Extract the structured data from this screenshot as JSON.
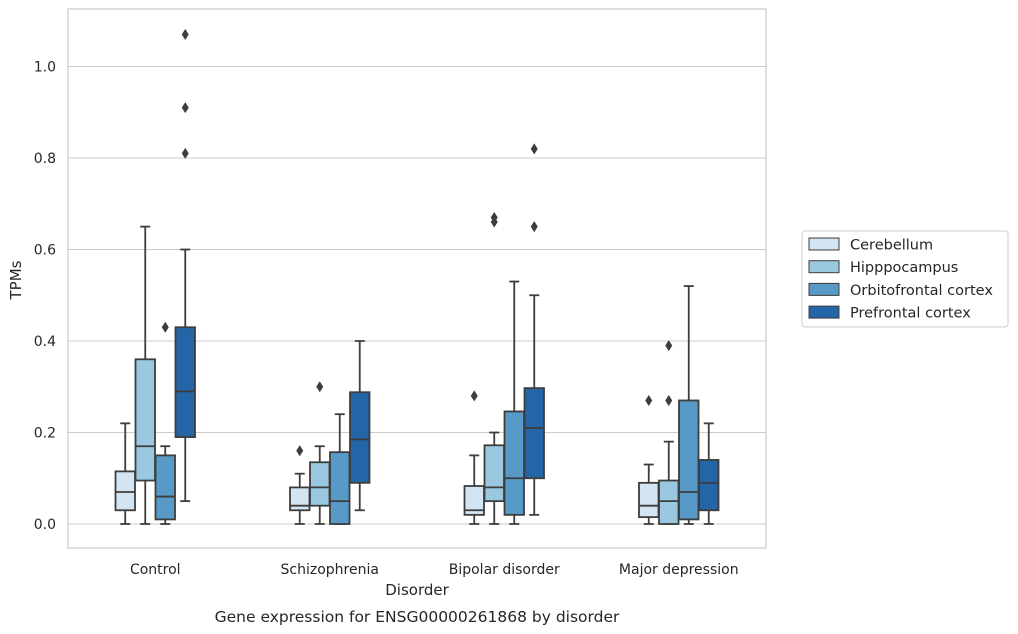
{
  "caption": "Gene expression for ENSG00000261868 by disorder",
  "chart_data": {
    "type": "box",
    "xlabel": "Disorder",
    "ylabel": "TPMs",
    "ylim": [
      -0.05,
      1.13
    ],
    "yticks": [
      "0.0",
      "0.2",
      "0.4",
      "0.6",
      "0.8",
      "1.0"
    ],
    "grid": "horizontal",
    "legend_position": "right",
    "categories": [
      "Control",
      "Schizophrenia",
      "Bipolar disorder",
      "Major depression"
    ],
    "series": [
      {
        "name": "Cerebellum",
        "color": "#d3e4f3",
        "boxes": [
          {
            "min": 0.0,
            "q1": 0.03,
            "median": 0.07,
            "q3": 0.115,
            "max": 0.22,
            "outliers": []
          },
          {
            "min": 0.0,
            "q1": 0.03,
            "median": 0.04,
            "q3": 0.08,
            "max": 0.11,
            "outliers": [
              0.16
            ]
          },
          {
            "min": 0.0,
            "q1": 0.02,
            "median": 0.03,
            "q3": 0.083,
            "max": 0.15,
            "outliers": [
              0.28
            ]
          },
          {
            "min": 0.0,
            "q1": 0.015,
            "median": 0.04,
            "q3": 0.09,
            "max": 0.13,
            "outliers": [
              0.27
            ]
          }
        ]
      },
      {
        "name": "Hipppocampus",
        "color": "#9ac8e0",
        "boxes": [
          {
            "min": 0.0,
            "q1": 0.095,
            "median": 0.17,
            "q3": 0.36,
            "max": 0.65,
            "outliers": []
          },
          {
            "min": 0.0,
            "q1": 0.04,
            "median": 0.08,
            "q3": 0.135,
            "max": 0.17,
            "outliers": [
              0.3
            ]
          },
          {
            "min": 0.0,
            "q1": 0.05,
            "median": 0.08,
            "q3": 0.172,
            "max": 0.2,
            "outliers": [
              0.66,
              0.67
            ]
          },
          {
            "min": 0.0,
            "q1": 0.0,
            "median": 0.05,
            "q3": 0.095,
            "max": 0.18,
            "outliers": [
              0.27,
              0.39
            ]
          }
        ]
      },
      {
        "name": "Orbitofrontal cortex",
        "color": "#5799c7",
        "boxes": [
          {
            "min": 0.0,
            "q1": 0.01,
            "median": 0.06,
            "q3": 0.15,
            "max": 0.17,
            "outliers": [
              0.43
            ]
          },
          {
            "min": 0.0,
            "q1": 0.0,
            "median": 0.05,
            "q3": 0.157,
            "max": 0.24,
            "outliers": []
          },
          {
            "min": 0.0,
            "q1": 0.02,
            "median": 0.1,
            "q3": 0.246,
            "max": 0.53,
            "outliers": []
          },
          {
            "min": 0.0,
            "q1": 0.01,
            "median": 0.07,
            "q3": 0.27,
            "max": 0.52,
            "outliers": []
          }
        ]
      },
      {
        "name": "Prefrontal cortex",
        "color": "#2465a8",
        "boxes": [
          {
            "min": 0.05,
            "q1": 0.19,
            "median": 0.29,
            "q3": 0.43,
            "max": 0.6,
            "outliers": [
              0.81,
              0.91,
              1.07
            ]
          },
          {
            "min": 0.03,
            "q1": 0.09,
            "median": 0.185,
            "q3": 0.288,
            "max": 0.4,
            "outliers": []
          },
          {
            "min": 0.02,
            "q1": 0.1,
            "median": 0.21,
            "q3": 0.297,
            "max": 0.5,
            "outliers": [
              0.65,
              0.82
            ]
          },
          {
            "min": 0.0,
            "q1": 0.03,
            "median": 0.09,
            "q3": 0.14,
            "max": 0.22,
            "outliers": []
          }
        ]
      }
    ]
  }
}
